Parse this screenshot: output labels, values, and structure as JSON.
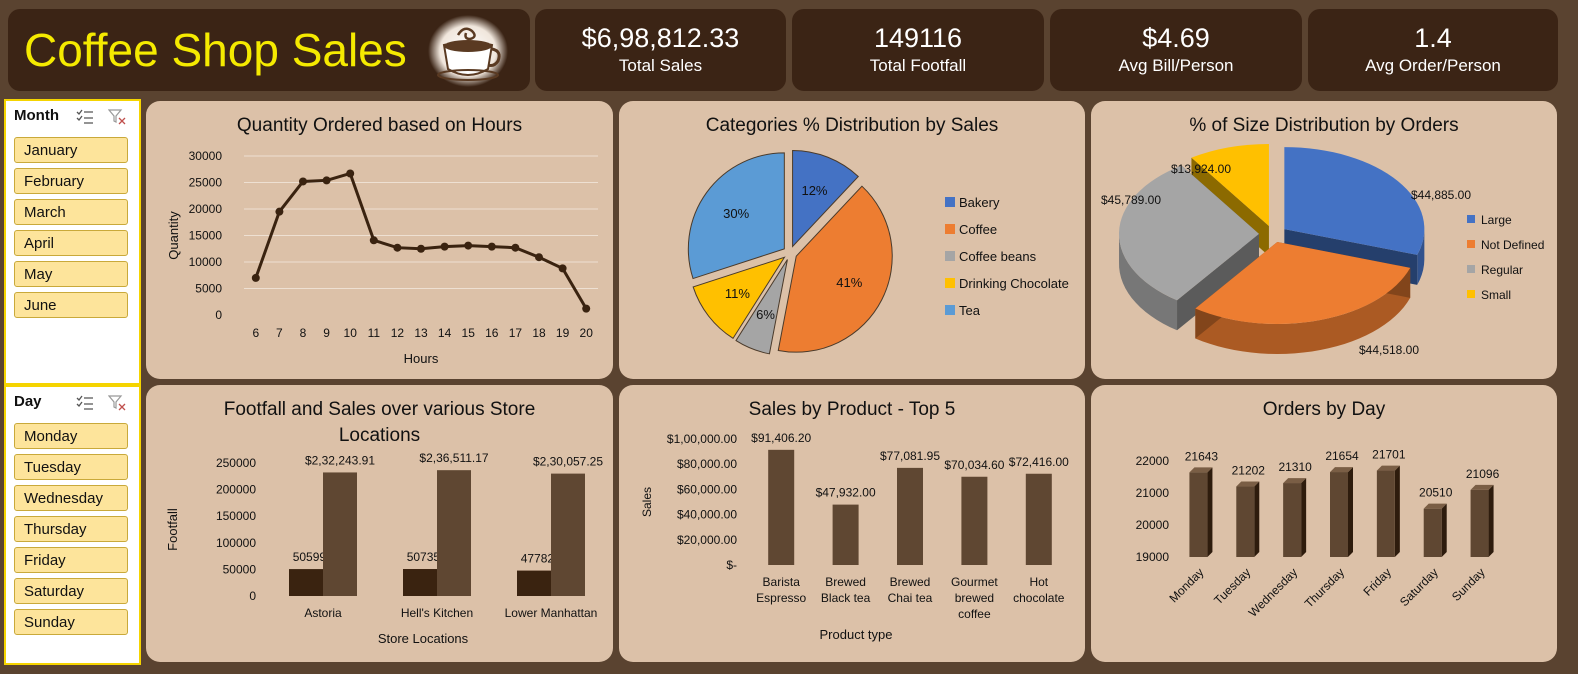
{
  "header": {
    "title": "Coffee Shop Sales"
  },
  "kpis": [
    {
      "value": "$6,98,812.33",
      "label": "Total Sales"
    },
    {
      "value": "149116",
      "label": "Total Footfall"
    },
    {
      "value": "$4.69",
      "label": "Avg Bill/Person"
    },
    {
      "value": "1.4",
      "label": "Avg Order/Person"
    }
  ],
  "slicers": {
    "month": {
      "title": "Month",
      "items": [
        "January",
        "February",
        "March",
        "April",
        "May",
        "June"
      ]
    },
    "day": {
      "title": "Day",
      "items": [
        "Monday",
        "Tuesday",
        "Wednesday",
        "Thursday",
        "Friday",
        "Saturday",
        "Sunday"
      ]
    }
  },
  "colors": {
    "bg": "#5a4330",
    "dark": "#3b2415",
    "panel": "#dcc1a8",
    "brown": "#5f4732",
    "darkbrown": "#3a2310",
    "title": "#f5ea00"
  },
  "chart_data": [
    {
      "id": "hours",
      "type": "line",
      "title": "Quantity Ordered based on Hours",
      "xlabel": "Hours",
      "ylabel": "Quantity",
      "x": [
        6,
        7,
        8,
        9,
        10,
        11,
        12,
        13,
        14,
        15,
        16,
        17,
        18,
        19,
        20
      ],
      "values": [
        7000,
        19500,
        25200,
        25400,
        26700,
        14100,
        12700,
        12500,
        12900,
        13100,
        12900,
        12700,
        10900,
        8800,
        1200
      ],
      "ylim": [
        0,
        30000
      ],
      "yticks": [
        0,
        5000,
        10000,
        15000,
        20000,
        25000,
        30000
      ],
      "grid": true
    },
    {
      "id": "categories",
      "type": "pie",
      "title": "Categories % Distribution by Sales",
      "labels": [
        "Bakery",
        "Coffee",
        "Coffee beans",
        "Drinking Chocolate",
        "Tea"
      ],
      "values": [
        12,
        41,
        6,
        11,
        30
      ],
      "data_labels": [
        "12%",
        "41%",
        "6%",
        "11%",
        "30%"
      ],
      "colors": [
        "#4472c4",
        "#ed7d31",
        "#a5a5a5",
        "#ffc000",
        "#5b9bd5"
      ],
      "legend": "right"
    },
    {
      "id": "sizes",
      "type": "pie",
      "title": "% of Size Distribution by Orders",
      "labels": [
        "Large",
        "Not Defined",
        "Regular",
        "Small"
      ],
      "values": [
        44885,
        44518,
        45789,
        13924
      ],
      "data_labels": [
        "$44,885.00",
        "$44,518.00",
        "$45,789.00",
        "$13,924.00"
      ],
      "colors": [
        "#4472c4",
        "#ed7d31",
        "#a5a5a5",
        "#ffc000"
      ],
      "legend": "right"
    },
    {
      "id": "locations",
      "type": "bar",
      "title": "Footfall and Sales over various Store Locations",
      "xlabel": "Store Locations",
      "ylabel": "Footfall",
      "categories": [
        "Astoria",
        "Hell's Kitchen",
        "Lower Manhattan"
      ],
      "series": [
        {
          "values": [
            50599,
            50735,
            47782
          ],
          "labels": [
            "50599",
            "50735",
            "47782"
          ]
        },
        {
          "values": [
            232243.91,
            236511.17,
            230057.25
          ],
          "labels": [
            "$2,32,243.91",
            "$2,36,511.17",
            "$2,30,057.25"
          ]
        }
      ],
      "ylim": [
        0,
        250000
      ],
      "yticks": [
        0,
        50000,
        100000,
        150000,
        200000,
        250000
      ]
    },
    {
      "id": "products",
      "type": "bar",
      "title": "Sales by Product - Top 5",
      "xlabel": "Product type",
      "ylabel": "Sales",
      "categories": [
        [
          "Barista",
          "Espresso"
        ],
        [
          "Brewed",
          "Black tea"
        ],
        [
          "Brewed",
          "Chai tea"
        ],
        [
          "Gourmet",
          "brewed",
          "coffee"
        ],
        [
          "Hot",
          "chocolate"
        ]
      ],
      "values": [
        91406.2,
        47932.0,
        77081.95,
        70034.6,
        72416.0
      ],
      "data_labels": [
        "$91,406.20",
        "$47,932.00",
        "$77,081.95",
        "$70,034.60",
        "$72,416.00"
      ],
      "ylim": [
        0,
        100000
      ],
      "yticks": [
        0,
        20000,
        40000,
        60000,
        80000,
        100000
      ],
      "ytick_labels": [
        "$-",
        "$20,000.00",
        "$40,000.00",
        "$60,000.00",
        "$80,000.00",
        "$1,00,000.00"
      ]
    },
    {
      "id": "days",
      "type": "bar",
      "title": "Orders by Day",
      "categories": [
        "Monday",
        "Tuesday",
        "Wednesday",
        "Thursday",
        "Friday",
        "Saturday",
        "Sunday"
      ],
      "values": [
        21643,
        21202,
        21310,
        21654,
        21701,
        20510,
        21096
      ],
      "ylim": [
        19000,
        22000
      ],
      "yticks": [
        19000,
        20000,
        21000,
        22000
      ]
    }
  ]
}
